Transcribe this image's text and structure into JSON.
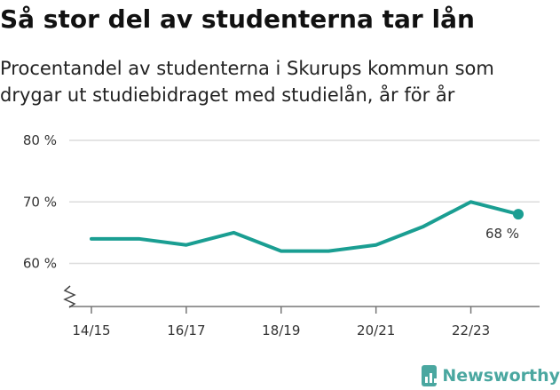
{
  "header": {
    "title": "Så stor del av studenterna tar lån",
    "subtitle_line1": "Procentandel av studenterna i Skurups kommun som",
    "subtitle_line2": "drygar ut studiebidraget med studielån, år för år"
  },
  "brand": {
    "name": "Newsworthy",
    "icon": "bar-chart-icon",
    "color": "#4aa7a0"
  },
  "chart_data": {
    "type": "line",
    "title": "Så stor del av studenterna tar lån",
    "subtitle": "Procentandel av studenterna i Skurups kommun som drygar ut studiebidraget med studielån, år för år",
    "xlabel": "",
    "ylabel": "",
    "x": [
      "14/15",
      "15/16",
      "16/17",
      "17/18",
      "18/19",
      "19/20",
      "20/21",
      "21/22",
      "22/23",
      "23/24"
    ],
    "series": [
      {
        "values": [
          64,
          64,
          63,
          65,
          62,
          62,
          63,
          66,
          70,
          68
        ],
        "color": "#1a9e92"
      }
    ],
    "x_tick_labels": [
      "14/15",
      "16/17",
      "18/19",
      "20/21",
      "22/23"
    ],
    "y_ticks": [
      60,
      70,
      80
    ],
    "y_tick_labels": [
      "60 %",
      "70 %",
      "80 %"
    ],
    "ylim": [
      53,
      80
    ],
    "grid": "horizontal",
    "y_axis_break": true,
    "last_value_label": "68 %"
  }
}
